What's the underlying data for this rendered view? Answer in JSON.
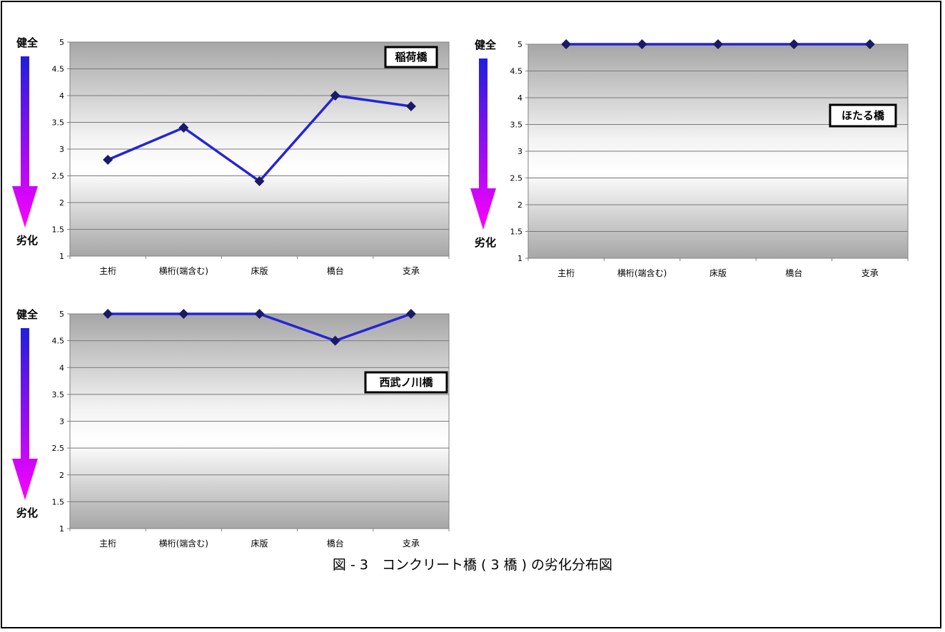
{
  "caption": "図 - 3　コンクリート橋 ( 3 橋 ) の劣化分布図",
  "scale": {
    "good": "健全",
    "bad": "劣化"
  },
  "colors": {
    "line": "#2424d6",
    "marker": "#1a1a66",
    "arrow_top": "#1f1fe0",
    "arrow_bottom": "#ff00ff"
  },
  "chart_data": [
    {
      "type": "line",
      "title": "稲荷橋",
      "categories": [
        "主桁",
        "横桁(端含む)",
        "床版",
        "橋台",
        "支承"
      ],
      "values": [
        2.8,
        3.4,
        2.4,
        4.0,
        3.8
      ],
      "ylim": [
        1,
        5
      ],
      "yticks": [
        "1",
        "1.5",
        "2",
        "2.5",
        "3",
        "3.5",
        "4",
        "4.5",
        "5"
      ],
      "grid": true
    },
    {
      "type": "line",
      "title": "ほたる橋",
      "categories": [
        "主桁",
        "横桁(端含む)",
        "床版",
        "橋台",
        "支承"
      ],
      "values": [
        5,
        5,
        5,
        5,
        5
      ],
      "ylim": [
        1,
        5
      ],
      "yticks": [
        "1",
        "1.5",
        "2",
        "2.5",
        "3",
        "3.5",
        "4",
        "4.5",
        "5"
      ],
      "grid": true
    },
    {
      "type": "line",
      "title": "西武ノ川橋",
      "categories": [
        "主桁",
        "横桁(端含む)",
        "床版",
        "橋台",
        "支承"
      ],
      "values": [
        5,
        5,
        5,
        4.5,
        5
      ],
      "ylim": [
        1,
        5
      ],
      "yticks": [
        "1",
        "1.5",
        "2",
        "2.5",
        "3",
        "3.5",
        "4",
        "4.5",
        "5"
      ],
      "grid": true
    }
  ]
}
